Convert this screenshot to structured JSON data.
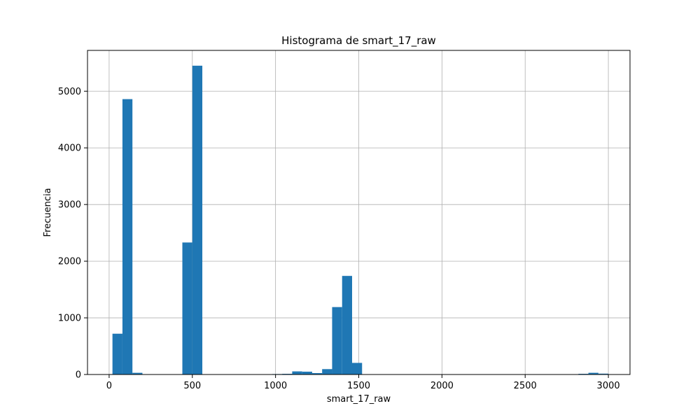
{
  "chart_data": {
    "type": "bar",
    "title": "Histograma de smart_17_raw",
    "xlabel": "smart_17_raw",
    "ylabel": "Frecuencia",
    "xlim": [
      -130,
      3130
    ],
    "ylim": [
      0,
      5720
    ],
    "xticks": [
      0,
      500,
      1000,
      1500,
      2000,
      2500,
      3000
    ],
    "yticks": [
      0,
      1000,
      2000,
      3000,
      4000,
      5000
    ],
    "grid": true,
    "bar_color": "#1f77b4",
    "bin_width": 60,
    "bins": [
      {
        "x0": 20,
        "count": 720
      },
      {
        "x0": 80,
        "count": 4860
      },
      {
        "x0": 140,
        "count": 30
      },
      {
        "x0": 440,
        "count": 2330
      },
      {
        "x0": 500,
        "count": 5450
      },
      {
        "x0": 980,
        "count": 8
      },
      {
        "x0": 1040,
        "count": 12
      },
      {
        "x0": 1100,
        "count": 55
      },
      {
        "x0": 1160,
        "count": 50
      },
      {
        "x0": 1220,
        "count": 25
      },
      {
        "x0": 1280,
        "count": 95
      },
      {
        "x0": 1340,
        "count": 1190
      },
      {
        "x0": 1400,
        "count": 1740
      },
      {
        "x0": 1460,
        "count": 205
      },
      {
        "x0": 2820,
        "count": 12
      },
      {
        "x0": 2880,
        "count": 30
      },
      {
        "x0": 2940,
        "count": 15
      }
    ]
  }
}
